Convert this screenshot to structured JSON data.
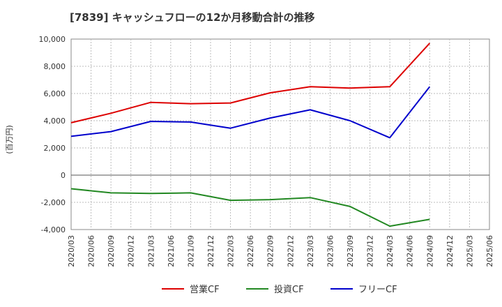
{
  "chart_data": {
    "type": "line",
    "title": "[7839]  キャッシュフローの12か月移動合計の推移",
    "ylabel": "(百万円)",
    "xlabel": "",
    "ylim": [
      -4000,
      10000
    ],
    "yticks": [
      10000,
      8000,
      6000,
      4000,
      2000,
      0,
      -2000,
      -4000
    ],
    "ytick_labels": [
      "10,000",
      "8,000",
      "6,000",
      "4,000",
      "2,000",
      "0",
      "-2,000",
      "-4,000"
    ],
    "categories": [
      "2020/03",
      "2020/06",
      "2020/09",
      "2020/12",
      "2021/03",
      "2021/06",
      "2021/09",
      "2021/12",
      "2022/03",
      "2022/06",
      "2022/09",
      "2022/12",
      "2023/03",
      "2023/06",
      "2023/09",
      "2023/12",
      "2024/03",
      "2024/06",
      "2024/09",
      "2024/12",
      "2025/03",
      "2025/06"
    ],
    "legend_position": "bottom",
    "grid": true,
    "series": [
      {
        "name": "営業CF",
        "color": "#dd0000",
        "values": [
          3850,
          null,
          4550,
          null,
          5350,
          null,
          5250,
          null,
          5300,
          null,
          6050,
          null,
          6500,
          null,
          6400,
          null,
          6500,
          null,
          9700,
          null,
          null,
          null
        ]
      },
      {
        "name": "投資CF",
        "color": "#228822",
        "values": [
          -1000,
          null,
          -1300,
          null,
          -1350,
          null,
          -1300,
          null,
          -1850,
          null,
          -1800,
          null,
          -1650,
          null,
          -2300,
          null,
          -3750,
          null,
          -3250,
          null,
          null,
          null
        ]
      },
      {
        "name": "フリーCF",
        "color": "#0000cc",
        "values": [
          2850,
          null,
          3200,
          null,
          3950,
          null,
          3900,
          null,
          3450,
          null,
          4200,
          null,
          4800,
          null,
          4000,
          null,
          2750,
          null,
          6500,
          null,
          null,
          null
        ]
      }
    ]
  }
}
